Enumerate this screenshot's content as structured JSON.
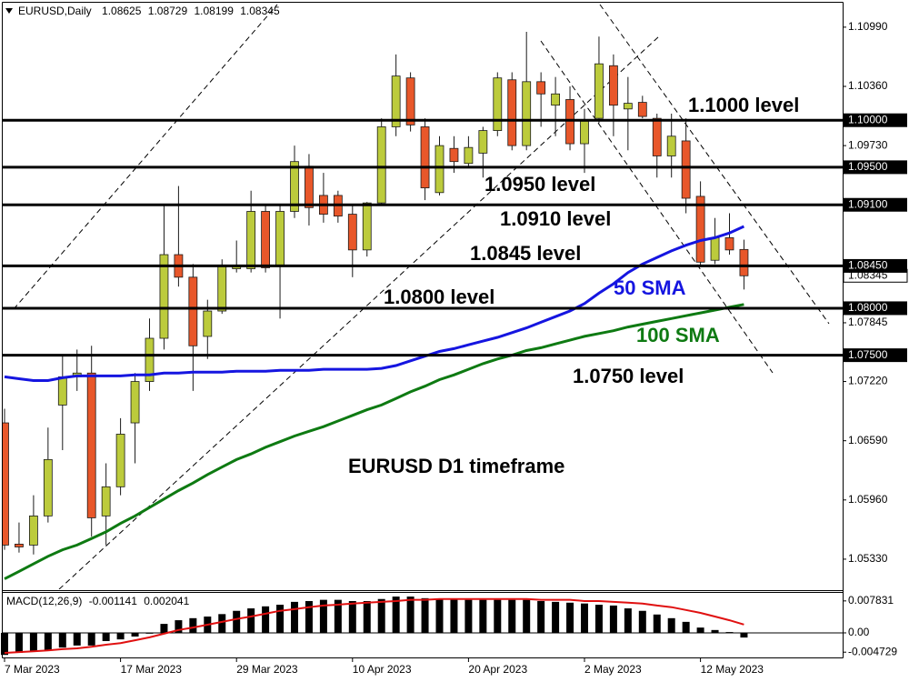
{
  "chart_data": [
    {
      "type": "candlestick",
      "title": "EURUSD,Daily",
      "categories": [
        "7 Mar 2023",
        null,
        null,
        null,
        null,
        null,
        null,
        null,
        "17 Mar 2023",
        null,
        null,
        null,
        null,
        null,
        null,
        null,
        "29 Mar 2023",
        null,
        null,
        null,
        null,
        null,
        null,
        null,
        "10 Apr 2023",
        null,
        null,
        null,
        null,
        null,
        null,
        null,
        "20 Apr 2023",
        null,
        null,
        null,
        null,
        null,
        null,
        null,
        "2 May 2023",
        null,
        null,
        null,
        null,
        null,
        null,
        null,
        "12 May 2023",
        null,
        null,
        null
      ],
      "ohlc": [
        [
          1.0678,
          1.0693,
          1.0543,
          1.0548
        ],
        [
          1.0549,
          1.0572,
          1.054,
          1.0546
        ],
        [
          1.0548,
          1.0601,
          1.0538,
          1.0579
        ],
        [
          1.0579,
          1.0673,
          1.0572,
          1.0639
        ],
        [
          1.0697,
          1.0751,
          1.0649,
          1.0727
        ],
        [
          1.0727,
          1.0756,
          1.0712,
          1.0731
        ],
        [
          1.0731,
          1.076,
          1.0557,
          1.0577
        ],
        [
          1.0579,
          1.0635,
          1.0548,
          1.061
        ],
        [
          1.061,
          1.0683,
          1.0601,
          1.0666
        ],
        [
          1.0678,
          1.0731,
          1.0635,
          1.0722
        ],
        [
          1.0722,
          1.0789,
          1.0712,
          1.0768
        ],
        [
          1.0768,
          1.091,
          1.0756,
          1.0857
        ],
        [
          1.0857,
          1.093,
          1.0823,
          1.0833
        ],
        [
          1.0833,
          1.0847,
          1.0712,
          1.076
        ],
        [
          1.077,
          1.0809,
          1.0746,
          1.0797
        ],
        [
          1.0797,
          1.0852,
          1.0794,
          1.0846
        ],
        [
          1.0842,
          1.0872,
          1.0838,
          1.0846
        ],
        [
          1.0842,
          1.0925,
          1.0838,
          1.0903
        ],
        [
          1.0903,
          1.091,
          1.0838,
          1.0843
        ],
        [
          1.0845,
          1.091,
          1.0789,
          1.0903
        ],
        [
          1.0903,
          1.0973,
          1.0896,
          1.0956
        ],
        [
          1.0951,
          1.0964,
          1.0888,
          1.0907
        ],
        [
          1.092,
          1.0944,
          1.0891,
          1.09
        ],
        [
          1.092,
          1.0925,
          1.0891,
          1.0898
        ],
        [
          1.09,
          1.091,
          1.0833,
          1.0862
        ],
        [
          1.0862,
          1.0913,
          1.0855,
          1.0912
        ],
        [
          1.0912,
          1.1002,
          1.091,
          1.0993
        ],
        [
          1.0993,
          1.107,
          1.0983,
          1.1047
        ],
        [
          1.1045,
          1.1051,
          1.0988,
          1.0995
        ],
        [
          1.0993,
          1.1002,
          1.0915,
          1.0928
        ],
        [
          1.0923,
          1.0983,
          1.092,
          1.0973
        ],
        [
          1.097,
          1.0983,
          1.0944,
          1.0956
        ],
        [
          1.0954,
          1.0983,
          1.0949,
          1.0971
        ],
        [
          1.0965,
          1.0993,
          1.0939,
          1.0989
        ],
        [
          1.0989,
          1.1051,
          1.0983,
          1.1045
        ],
        [
          1.1043,
          1.1051,
          1.0968,
          1.0973
        ],
        [
          1.0973,
          1.1094,
          1.0968,
          1.1041
        ],
        [
          1.1041,
          1.1051,
          1.0993,
          1.1028
        ],
        [
          1.1016,
          1.1046,
          1.0983,
          1.1028
        ],
        [
          1.1022,
          1.1036,
          1.0968,
          1.0975
        ],
        [
          1.0975,
          1.1012,
          1.0944,
          1.0999
        ],
        [
          1.1002,
          1.1089,
          1.0997,
          1.106
        ],
        [
          1.1058,
          1.107,
          1.0983,
          1.1016
        ],
        [
          1.1012,
          1.1046,
          1.0968,
          1.1018
        ],
        [
          1.1019,
          1.1026,
          1.1002,
          1.1004
        ],
        [
          1.1002,
          1.1007,
          1.0939,
          1.0962
        ],
        [
          1.0962,
          1.1007,
          1.0939,
          1.0983
        ],
        [
          1.0978,
          1.1002,
          1.0901,
          1.0917
        ],
        [
          1.0919,
          1.0935,
          1.0846,
          1.0849
        ],
        [
          1.0851,
          1.0896,
          1.0847,
          1.0875
        ],
        [
          1.0875,
          1.0901,
          1.0857,
          1.0862
        ],
        [
          1.08625,
          1.08729,
          1.08199,
          1.08345
        ]
      ],
      "up_color": "#bccb3c",
      "down_color": "#e8572a",
      "series": [
        {
          "name": "50 SMA",
          "color": "#1515e0",
          "values": [
            1.0727,
            1.0725,
            1.0723,
            1.0723,
            1.0726,
            1.0728,
            1.0728,
            1.0728,
            1.0728,
            1.0729,
            1.0729,
            1.0731,
            1.0731,
            1.0732,
            1.0732,
            1.0732,
            1.0733,
            1.0733,
            1.0733,
            1.0734,
            1.0734,
            1.0734,
            1.0735,
            1.0735,
            1.0735,
            1.0735,
            1.0736,
            1.0739,
            1.0744,
            1.0749,
            1.0754,
            1.0757,
            1.0761,
            1.0765,
            1.0769,
            1.0774,
            1.0779,
            1.0785,
            1.0791,
            1.0797,
            1.0805,
            1.0816,
            1.0826,
            1.0838,
            1.0847,
            1.0854,
            1.0861,
            1.0867,
            1.0872,
            1.0875,
            1.088,
            1.0887
          ]
        },
        {
          "name": "100 SMA",
          "color": "#0e7a12",
          "values": [
            1.0512,
            1.052,
            1.0528,
            1.0536,
            1.0543,
            1.0548,
            1.0555,
            1.0562,
            1.0571,
            1.0579,
            1.0588,
            1.0597,
            1.0606,
            1.0614,
            1.0623,
            1.0631,
            1.0639,
            1.0645,
            1.0652,
            1.0658,
            1.0664,
            1.0669,
            1.0674,
            1.068,
            1.0686,
            1.0692,
            1.0697,
            1.0704,
            1.0711,
            1.0717,
            1.0724,
            1.0729,
            1.0735,
            1.0741,
            1.0746,
            1.075,
            1.0755,
            1.0758,
            1.0762,
            1.0766,
            1.077,
            1.0773,
            1.0776,
            1.078,
            1.0783,
            1.0786,
            1.0789,
            1.0792,
            1.0795,
            1.0798,
            1.0801,
            1.0804
          ]
        }
      ],
      "ylim": [
        1.0501,
        1.1125
      ],
      "yticks": [
        {
          "value": 1.1099,
          "label": "1.10990"
        },
        {
          "value": 1.1036,
          "label": "1.10360"
        },
        {
          "value": 1.0973,
          "label": "1.09730"
        },
        1.07845,
        {
          "value": 1.0722,
          "label": "1.07220"
        },
        {
          "value": 1.0659,
          "label": "1.06590"
        },
        {
          "value": 1.0596,
          "label": "1.05960"
        },
        {
          "value": 1.0533,
          "label": "1.05330"
        }
      ],
      "price_label": {
        "value": 1.08345,
        "label": "1.08345"
      },
      "levels": [
        {
          "value": 1.1,
          "label": "1.10000",
          "text": "1.1000 level"
        },
        {
          "value": 1.095,
          "label": "1.09500",
          "text": "1.0950 level"
        },
        {
          "value": 1.091,
          "label": "1.09100",
          "text": "1.0910 level"
        },
        {
          "value": 1.0845,
          "label": "1.08450",
          "text": "1.0845 level"
        },
        {
          "value": 1.08,
          "label": "1.08000",
          "text": "1.0800 level"
        },
        {
          "value": 1.075,
          "label": "1.07500",
          "text": "1.0750 level"
        }
      ],
      "annotation": "EURUSD D1 timeframe"
    },
    {
      "type": "macd",
      "title": "MACD(12,26,9)",
      "series": [
        {
          "type": "bar",
          "color": "#000000",
          "values": [
            -0.0054,
            -0.0049,
            -0.0045,
            -0.0043,
            -0.0036,
            -0.0031,
            -0.0031,
            -0.002,
            -0.0016,
            -0.0009,
            -0.0002,
            0.0022,
            0.0031,
            0.0036,
            0.004,
            0.0046,
            0.0054,
            0.006,
            0.0065,
            0.0069,
            0.0076,
            0.0078,
            0.0081,
            0.0081,
            0.0078,
            0.0078,
            0.0083,
            0.0089,
            0.0089,
            0.0085,
            0.0083,
            0.0083,
            0.0081,
            0.0081,
            0.0081,
            0.0081,
            0.0081,
            0.0078,
            0.0076,
            0.0074,
            0.0072,
            0.0069,
            0.0067,
            0.006,
            0.0054,
            0.0045,
            0.0036,
            0.0027,
            0.0013,
            0.0007,
            0.0002,
            -0.001141
          ]
        },
        {
          "type": "line",
          "color": "#e01010",
          "values": [
            -0.0049,
            -0.0047,
            -0.0045,
            -0.0043,
            -0.004,
            -0.0038,
            -0.0034,
            -0.0029,
            -0.0025,
            -0.0018,
            -0.0011,
            -0.0002,
            0.0007,
            0.0013,
            0.002,
            0.0027,
            0.0034,
            0.004,
            0.0047,
            0.0054,
            0.0058,
            0.0063,
            0.0067,
            0.0069,
            0.0072,
            0.0074,
            0.0076,
            0.0078,
            0.0081,
            0.0081,
            0.0083,
            0.0083,
            0.0083,
            0.0083,
            0.0083,
            0.0083,
            0.0083,
            0.0081,
            0.0081,
            0.0081,
            0.0078,
            0.0078,
            0.0076,
            0.0074,
            0.0072,
            0.0067,
            0.0063,
            0.0056,
            0.0049,
            0.004,
            0.0031,
            0.002041
          ]
        }
      ],
      "ylim": [
        -0.0058,
        0.0098
      ],
      "yticks": [
        0.007831,
        {
          "value": 0,
          "label": "0.00"
        },
        -0.004729
      ]
    }
  ]
}
